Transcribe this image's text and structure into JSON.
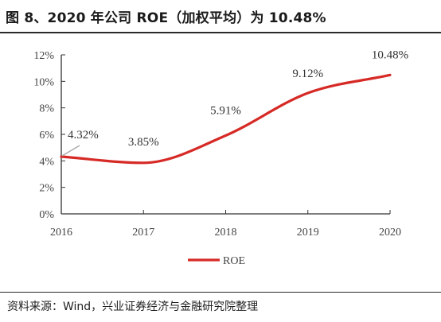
{
  "header": {
    "title": "图 8、2020 年公司 ROE（加权平均）为 10.48%"
  },
  "footer": {
    "source": "资料来源：Wind，兴业证券经济与金融研究院整理"
  },
  "colors": {
    "series": "#d62a26",
    "axis": "#333333",
    "leader": "#aaaaaa"
  },
  "chart_data": {
    "type": "line",
    "title": "",
    "xlabel": "",
    "ylabel": "",
    "x": [
      "2016",
      "2017",
      "2018",
      "2019",
      "2020"
    ],
    "y_ticks": [
      "0%",
      "2%",
      "4%",
      "6%",
      "8%",
      "10%",
      "12%"
    ],
    "ylim": [
      0,
      12
    ],
    "series": [
      {
        "name": "ROE",
        "values": [
          4.32,
          3.85,
          5.91,
          9.12,
          10.48
        ],
        "labels": [
          "4.32%",
          "3.85%",
          "5.91%",
          "9.12%",
          "10.48%"
        ],
        "smooth": true
      }
    ],
    "grid": false,
    "legend_position": "bottom-center"
  }
}
